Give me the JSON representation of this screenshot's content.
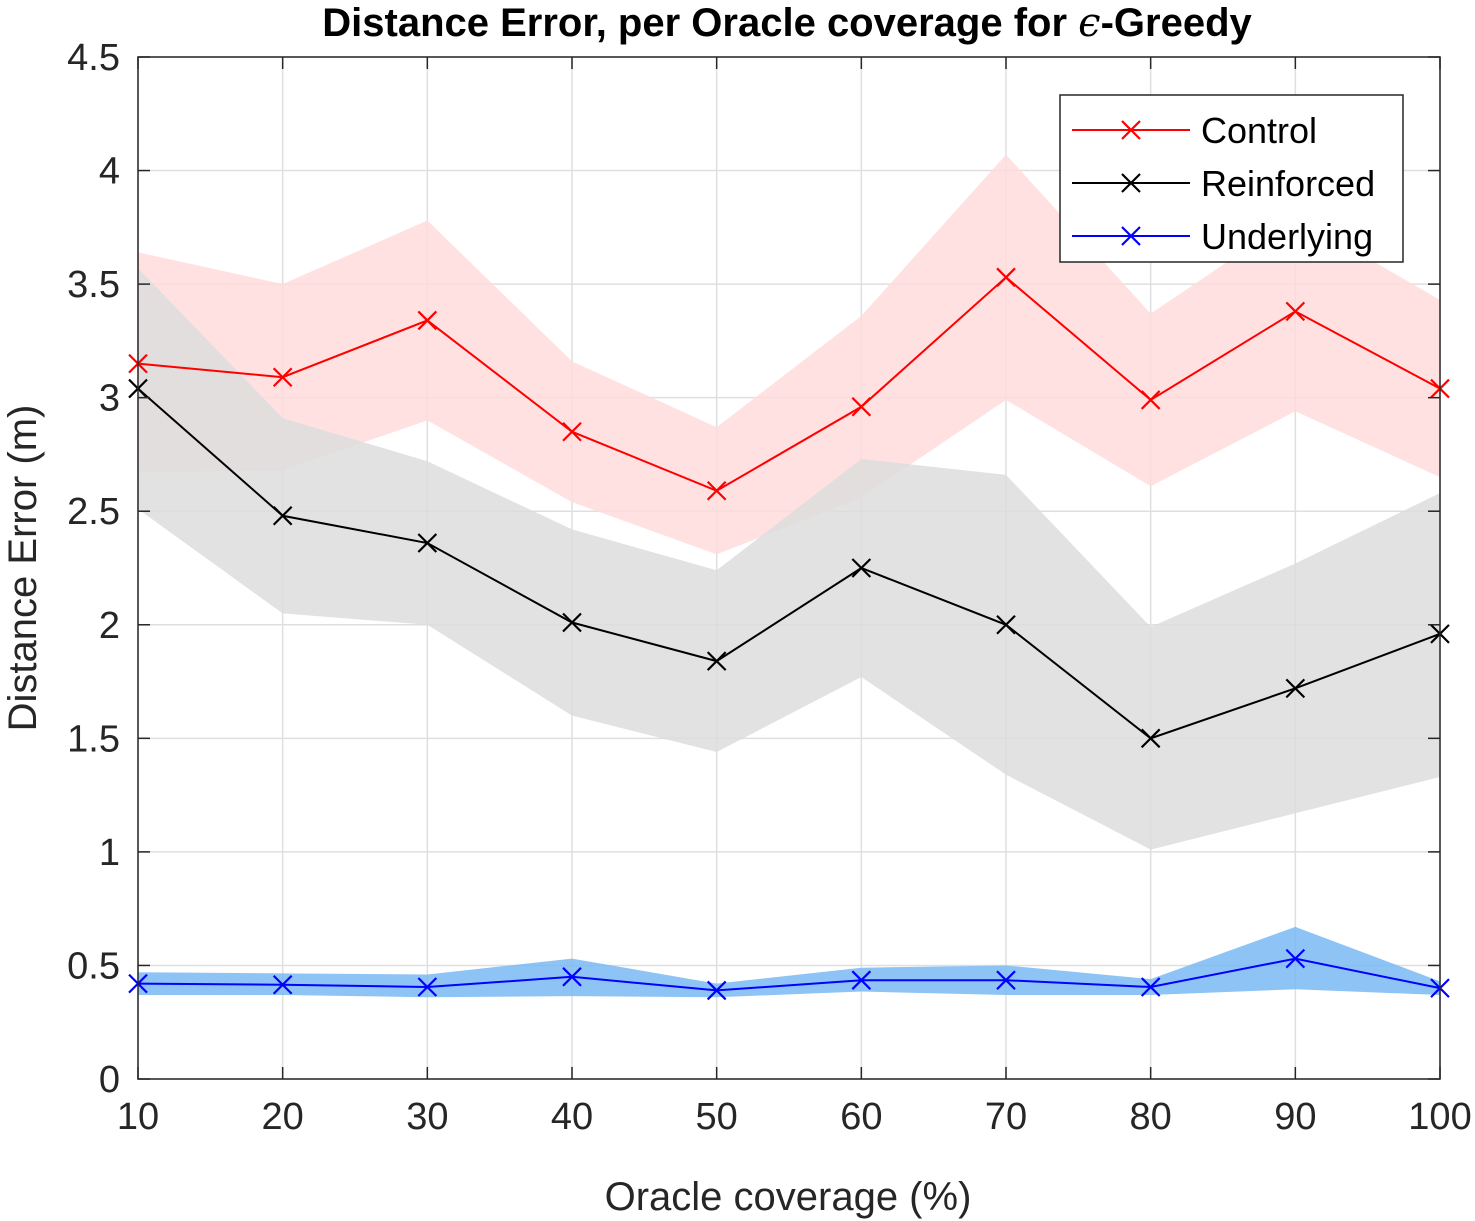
{
  "chart_data": {
    "type": "line",
    "title": "Distance Error, per Oracle coverage for",
    "title_symbol": "ϵ",
    "title_suffix": "-Greedy",
    "xlabel": "Oracle coverage (%)",
    "ylabel": "Distance Error (m)",
    "x": [
      10,
      20,
      30,
      40,
      50,
      60,
      70,
      80,
      90,
      100
    ],
    "xlim": [
      10,
      100
    ],
    "ylim": [
      0,
      4.5
    ],
    "xticks": [
      "10",
      "20",
      "30",
      "40",
      "50",
      "60",
      "70",
      "80",
      "90",
      "100"
    ],
    "yticks": [
      "0",
      "0.5",
      "1",
      "1.5",
      "2",
      "2.5",
      "3",
      "3.5",
      "4",
      "4.5"
    ],
    "grid": true,
    "legend_position": "top-right",
    "series": [
      {
        "name": "Control",
        "color": "#ff0000",
        "band_color": "#ffdcdc",
        "values": [
          3.15,
          3.09,
          3.34,
          2.85,
          2.59,
          2.96,
          3.53,
          2.99,
          3.38,
          3.04
        ],
        "upper": [
          3.64,
          3.5,
          3.78,
          3.16,
          2.87,
          3.36,
          4.07,
          3.37,
          3.8,
          3.43
        ],
        "lower": [
          2.67,
          2.68,
          2.9,
          2.54,
          2.31,
          2.56,
          2.99,
          2.61,
          2.94,
          2.65
        ]
      },
      {
        "name": "Reinforced",
        "color": "#000000",
        "band_color": "#dddddd",
        "values": [
          3.04,
          2.48,
          2.36,
          2.01,
          1.84,
          2.25,
          2.0,
          1.5,
          1.72,
          1.96
        ],
        "upper": [
          3.57,
          2.91,
          2.72,
          2.42,
          2.24,
          2.73,
          2.66,
          1.99,
          2.27,
          2.58
        ],
        "lower": [
          2.51,
          2.05,
          2.0,
          1.6,
          1.44,
          1.77,
          1.34,
          1.01,
          1.17,
          1.33
        ]
      },
      {
        "name": "Underlying",
        "color": "#0000ff",
        "band_color": "#7ab8f5",
        "values": [
          0.42,
          0.415,
          0.405,
          0.45,
          0.39,
          0.435,
          0.435,
          0.405,
          0.53,
          0.4
        ],
        "upper": [
          0.47,
          0.465,
          0.46,
          0.53,
          0.42,
          0.49,
          0.5,
          0.44,
          0.67,
          0.43
        ],
        "lower": [
          0.37,
          0.37,
          0.36,
          0.365,
          0.36,
          0.385,
          0.37,
          0.37,
          0.395,
          0.37
        ]
      }
    ]
  }
}
